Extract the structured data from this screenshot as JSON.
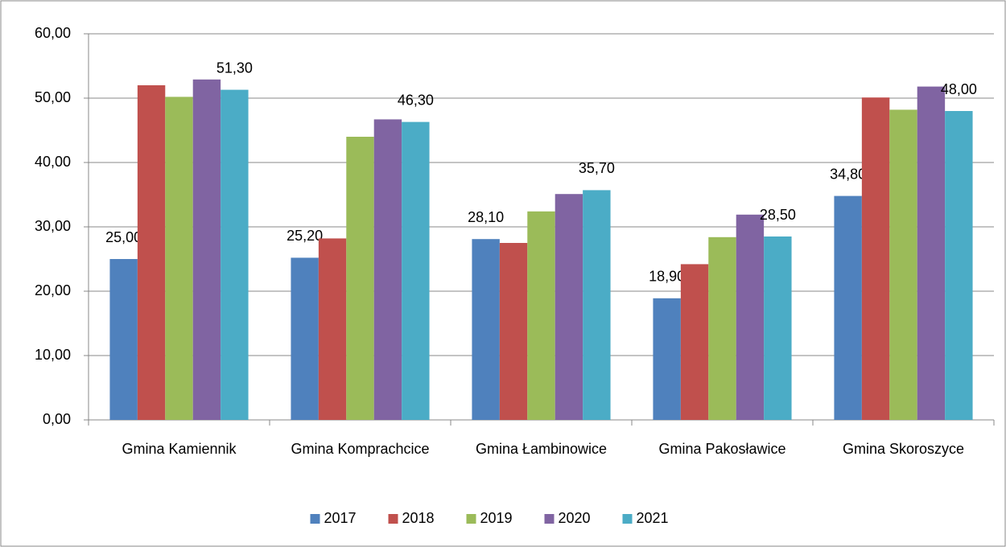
{
  "chart_data": {
    "type": "bar",
    "categories": [
      "Gmina Kamiennik",
      "Gmina Komprachcice",
      "Gmina Łambinowice",
      "Gmina Pakosławice",
      "Gmina Skoroszyce"
    ],
    "series": [
      {
        "name": "2017",
        "color": "#4f81bd",
        "values": [
          25.0,
          25.2,
          28.1,
          18.9,
          34.8
        ],
        "value_labels": [
          "25,00",
          "25,20",
          "28,10",
          "18,90",
          "34,80"
        ]
      },
      {
        "name": "2018",
        "color": "#c0504d",
        "values": [
          52.0,
          28.2,
          27.5,
          24.2,
          50.1
        ]
      },
      {
        "name": "2019",
        "color": "#9bbb59",
        "values": [
          50.2,
          44.0,
          32.4,
          28.4,
          48.2
        ]
      },
      {
        "name": "2020",
        "color": "#8064a2",
        "values": [
          52.9,
          46.7,
          35.1,
          31.9,
          51.8
        ]
      },
      {
        "name": "2021",
        "color": "#4bacc6",
        "values": [
          51.3,
          46.3,
          35.7,
          28.5,
          48.0
        ],
        "value_labels": [
          "51,30",
          "46,30",
          "35,70",
          "28,50",
          "48,00"
        ]
      }
    ],
    "ylim": [
      0,
      60
    ],
    "yticks": [
      {
        "value": 0,
        "label": "0,00"
      },
      {
        "value": 10,
        "label": "10,00"
      },
      {
        "value": 20,
        "label": "20,00"
      },
      {
        "value": 30,
        "label": "30,00"
      },
      {
        "value": 40,
        "label": "40,00"
      },
      {
        "value": 50,
        "label": "50,00"
      },
      {
        "value": 60,
        "label": "60,00"
      }
    ],
    "grid": true,
    "legend": "bottom"
  }
}
